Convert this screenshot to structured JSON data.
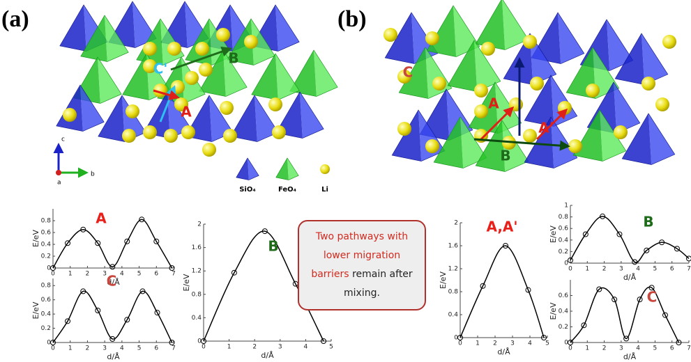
{
  "panels": [
    {
      "label": "(a)",
      "path_labels": [
        "C'",
        "B",
        "A"
      ],
      "axes": [
        "c",
        "b",
        "a"
      ],
      "legend": [
        "SiO₄",
        "FeO₄",
        "Li"
      ]
    },
    {
      "label": "(b)",
      "path_labels": [
        "C",
        "A",
        "A'",
        "B"
      ]
    }
  ],
  "note": {
    "highlight": "Two pathways with lower migration barriers",
    "rest": "remain after mixing."
  },
  "chart_data": [
    {
      "type": "line",
      "title": "A",
      "title_color": "#e8201a",
      "xlabel": "d/Å",
      "ylabel": "E/eV",
      "color": "#000000",
      "x": [
        0,
        0.85,
        1.75,
        2.6,
        3.45,
        4.3,
        5.15,
        6.0,
        6.9
      ],
      "values": [
        0,
        0.42,
        0.65,
        0.42,
        0.02,
        0.45,
        0.82,
        0.45,
        0
      ],
      "xlim": [
        0,
        7
      ],
      "ylim": [
        0,
        1
      ],
      "xticks": [
        0,
        1,
        2,
        3,
        4,
        5,
        6,
        7
      ],
      "yticks": [
        0,
        0.2,
        0.4,
        0.6,
        0.8
      ]
    },
    {
      "type": "line",
      "title": "C",
      "title_color": "#c8473e",
      "xlabel": "d/Å",
      "ylabel": "E/eV",
      "color": "#000000",
      "x": [
        0,
        0.85,
        1.75,
        2.6,
        3.45,
        4.3,
        5.2,
        6.05,
        6.9
      ],
      "values": [
        0,
        0.3,
        0.72,
        0.45,
        0.05,
        0.32,
        0.72,
        0.42,
        0
      ],
      "xlim": [
        0,
        7
      ],
      "ylim": [
        0,
        0.9
      ],
      "xticks": [
        0,
        1,
        2,
        3,
        4,
        5,
        6,
        7
      ],
      "yticks": [
        0,
        0.2,
        0.4,
        0.6,
        0.8
      ]
    },
    {
      "type": "line",
      "title": "B",
      "title_color": "#1e6b1a",
      "xlabel": "d/Å",
      "ylabel": "E/eV",
      "color": "#000000",
      "x": [
        0,
        1.2,
        2.4,
        3.6,
        4.7
      ],
      "values": [
        0,
        1.17,
        1.88,
        0.98,
        0
      ],
      "xlim": [
        0,
        5
      ],
      "ylim": [
        0,
        2
      ],
      "xticks": [
        0,
        1,
        2,
        3,
        4,
        5
      ],
      "yticks": [
        0,
        0.4,
        0.8,
        1.2,
        1.6,
        2
      ]
    },
    {
      "type": "line",
      "title": "A,A'",
      "title_color": "#e8201a",
      "xlabel": "d/Å",
      "ylabel": "E/eV",
      "color": "#000000",
      "x": [
        0,
        1.3,
        2.6,
        3.9,
        4.8
      ],
      "values": [
        0,
        0.9,
        1.6,
        0.83,
        0
      ],
      "xlim": [
        0,
        5
      ],
      "ylim": [
        0,
        2
      ],
      "xticks": [
        0,
        1,
        2,
        3,
        4,
        5
      ],
      "yticks": [
        0,
        0.4,
        0.8,
        1.2,
        1.6,
        2
      ]
    },
    {
      "type": "line",
      "title": "B",
      "title_color": "#1e6b1a",
      "xlabel": "d/Å",
      "ylabel": "E/eV",
      "color": "#000000",
      "x": [
        0,
        0.9,
        1.9,
        2.9,
        3.8,
        4.5,
        5.4,
        6.3,
        7
      ],
      "values": [
        0.05,
        0.5,
        0.81,
        0.5,
        0.02,
        0.22,
        0.36,
        0.25,
        0.08
      ],
      "xlim": [
        0,
        7
      ],
      "ylim": [
        0,
        1
      ],
      "xticks": [
        0,
        1,
        2,
        3,
        4,
        5,
        6,
        7
      ],
      "yticks": [
        0,
        0.2,
        0.4,
        0.6,
        0.8,
        1
      ]
    },
    {
      "type": "line",
      "title": "C",
      "title_color": "#c8473e",
      "xlabel": "d/Å",
      "ylabel": "E/eV",
      "color": "#000000",
      "x": [
        0,
        0.8,
        1.7,
        2.6,
        3.3,
        4.1,
        4.8,
        5.6,
        6.4
      ],
      "values": [
        0,
        0.22,
        0.68,
        0.55,
        0.05,
        0.55,
        0.7,
        0.35,
        0
      ],
      "xlim": [
        0,
        7
      ],
      "ylim": [
        0,
        0.8
      ],
      "xticks": [
        0,
        1,
        2,
        3,
        4,
        5,
        6,
        7
      ],
      "yticks": [
        0,
        0.2,
        0.4,
        0.6
      ]
    }
  ]
}
